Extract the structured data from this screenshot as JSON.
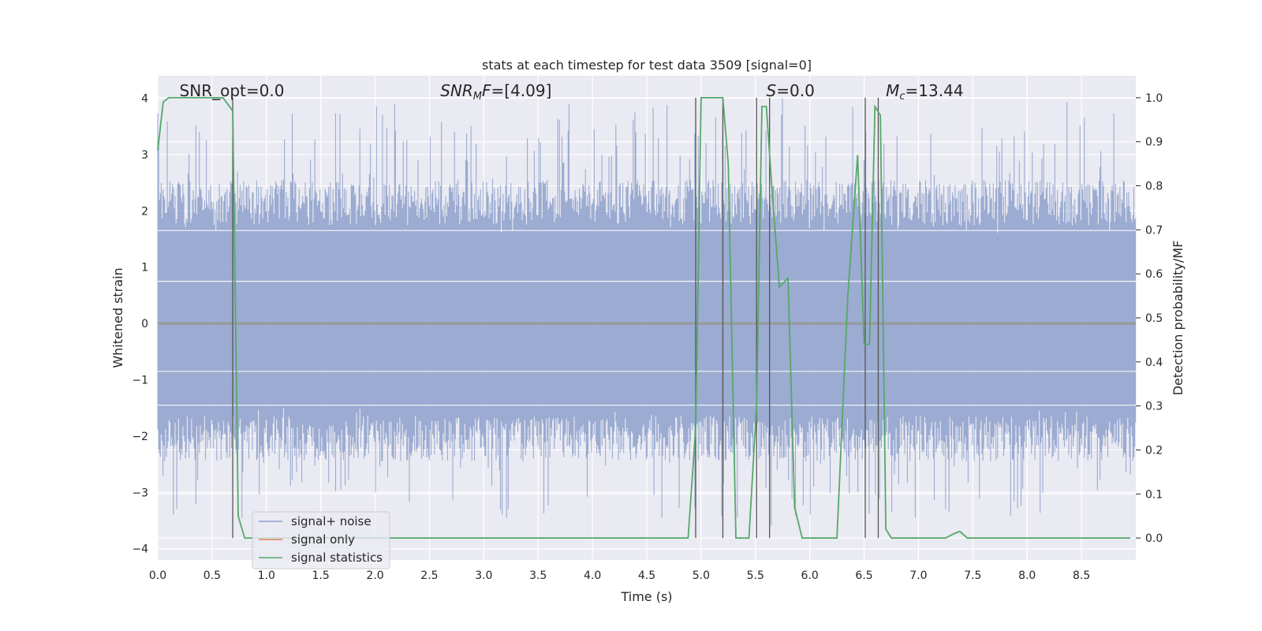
{
  "chart_data": {
    "type": "line",
    "title": "stats at each timestep for test data 3509 [signal=0]",
    "xlabel": "Time (s)",
    "ylabel_left": "Whitened strain",
    "ylabel_right": "Detection probability/MF",
    "xlim": [
      0.0,
      9.0
    ],
    "ylim_left": [
      -4.2,
      4.4
    ],
    "ylim_right": [
      -0.05,
      1.05
    ],
    "x_ticks": [
      "0.0",
      "0.5",
      "1.0",
      "1.5",
      "2.0",
      "2.5",
      "3.0",
      "3.5",
      "4.0",
      "4.5",
      "5.0",
      "5.5",
      "6.0",
      "6.5",
      "7.0",
      "7.5",
      "8.0",
      "8.5"
    ],
    "y_ticks_left": [
      "4",
      "3",
      "2",
      "1",
      "0",
      "−1",
      "−2",
      "−3",
      "−4"
    ],
    "y_ticks_right": [
      "1.0",
      "0.9",
      "0.8",
      "0.7",
      "0.6",
      "0.5",
      "0.4",
      "0.3",
      "0.2",
      "0.1",
      "0.0"
    ],
    "annotations": [
      {
        "text": "SNR_opt=0.0",
        "x": 0.2
      },
      {
        "text": "SNR_MF=[4.09]",
        "x": 2.6
      },
      {
        "text": "S=0.0",
        "x": 5.6
      },
      {
        "text": "M_c=13.44",
        "x": 6.7
      }
    ],
    "vertical_markers": [
      0.69,
      4.95,
      5.2,
      5.51,
      5.63,
      6.51,
      6.63
    ],
    "legend": {
      "placement": "lower-left",
      "entries": [
        {
          "label": "signal+ noise",
          "color": "#8da0cb"
        },
        {
          "label": "signal only",
          "color": "#dd8452"
        },
        {
          "label": "signal statistics",
          "color": "#55a868"
        }
      ]
    },
    "series": [
      {
        "name": "signal+ noise",
        "color": "#8da0cb",
        "kind": "noise",
        "band": [
          -1.5,
          1.6
        ],
        "peak_range": [
          -3.6,
          4.0
        ]
      },
      {
        "name": "signal only",
        "color": "#dd8452",
        "x": [
          0.0,
          9.0
        ],
        "y": [
          0.0,
          0.0
        ]
      },
      {
        "name": "signal statistics",
        "color": "#55a868",
        "axis": "right",
        "x": [
          0.0,
          0.05,
          0.1,
          0.2,
          0.3,
          0.4,
          0.5,
          0.6,
          0.69,
          0.74,
          0.8,
          0.9,
          1.0,
          2.0,
          3.0,
          4.0,
          4.5,
          4.88,
          4.95,
          5.0,
          5.1,
          5.2,
          5.25,
          5.32,
          5.38,
          5.44,
          5.51,
          5.56,
          5.6,
          5.65,
          5.72,
          5.8,
          5.86,
          5.93,
          6.0,
          6.1,
          6.25,
          6.35,
          6.44,
          6.5,
          6.55,
          6.6,
          6.65,
          6.7,
          6.75,
          6.8,
          7.0,
          7.25,
          7.33,
          7.38,
          7.45,
          7.6,
          8.0,
          8.5,
          8.95
        ],
        "y": [
          0.88,
          0.99,
          1.0,
          1.0,
          1.0,
          1.0,
          1.0,
          1.0,
          0.97,
          0.05,
          0.0,
          0.0,
          0.0,
          0.0,
          0.0,
          0.0,
          0.0,
          0.0,
          0.25,
          1.0,
          1.0,
          1.0,
          0.85,
          0.0,
          0.0,
          0.0,
          0.3,
          0.98,
          0.98,
          0.8,
          0.57,
          0.59,
          0.07,
          0.0,
          0.0,
          0.0,
          0.0,
          0.55,
          0.87,
          0.44,
          0.44,
          0.98,
          0.96,
          0.02,
          0.0,
          0.0,
          0.0,
          0.0,
          0.01,
          0.015,
          0.0,
          0.0,
          0.0,
          0.0,
          0.0
        ]
      }
    ]
  }
}
